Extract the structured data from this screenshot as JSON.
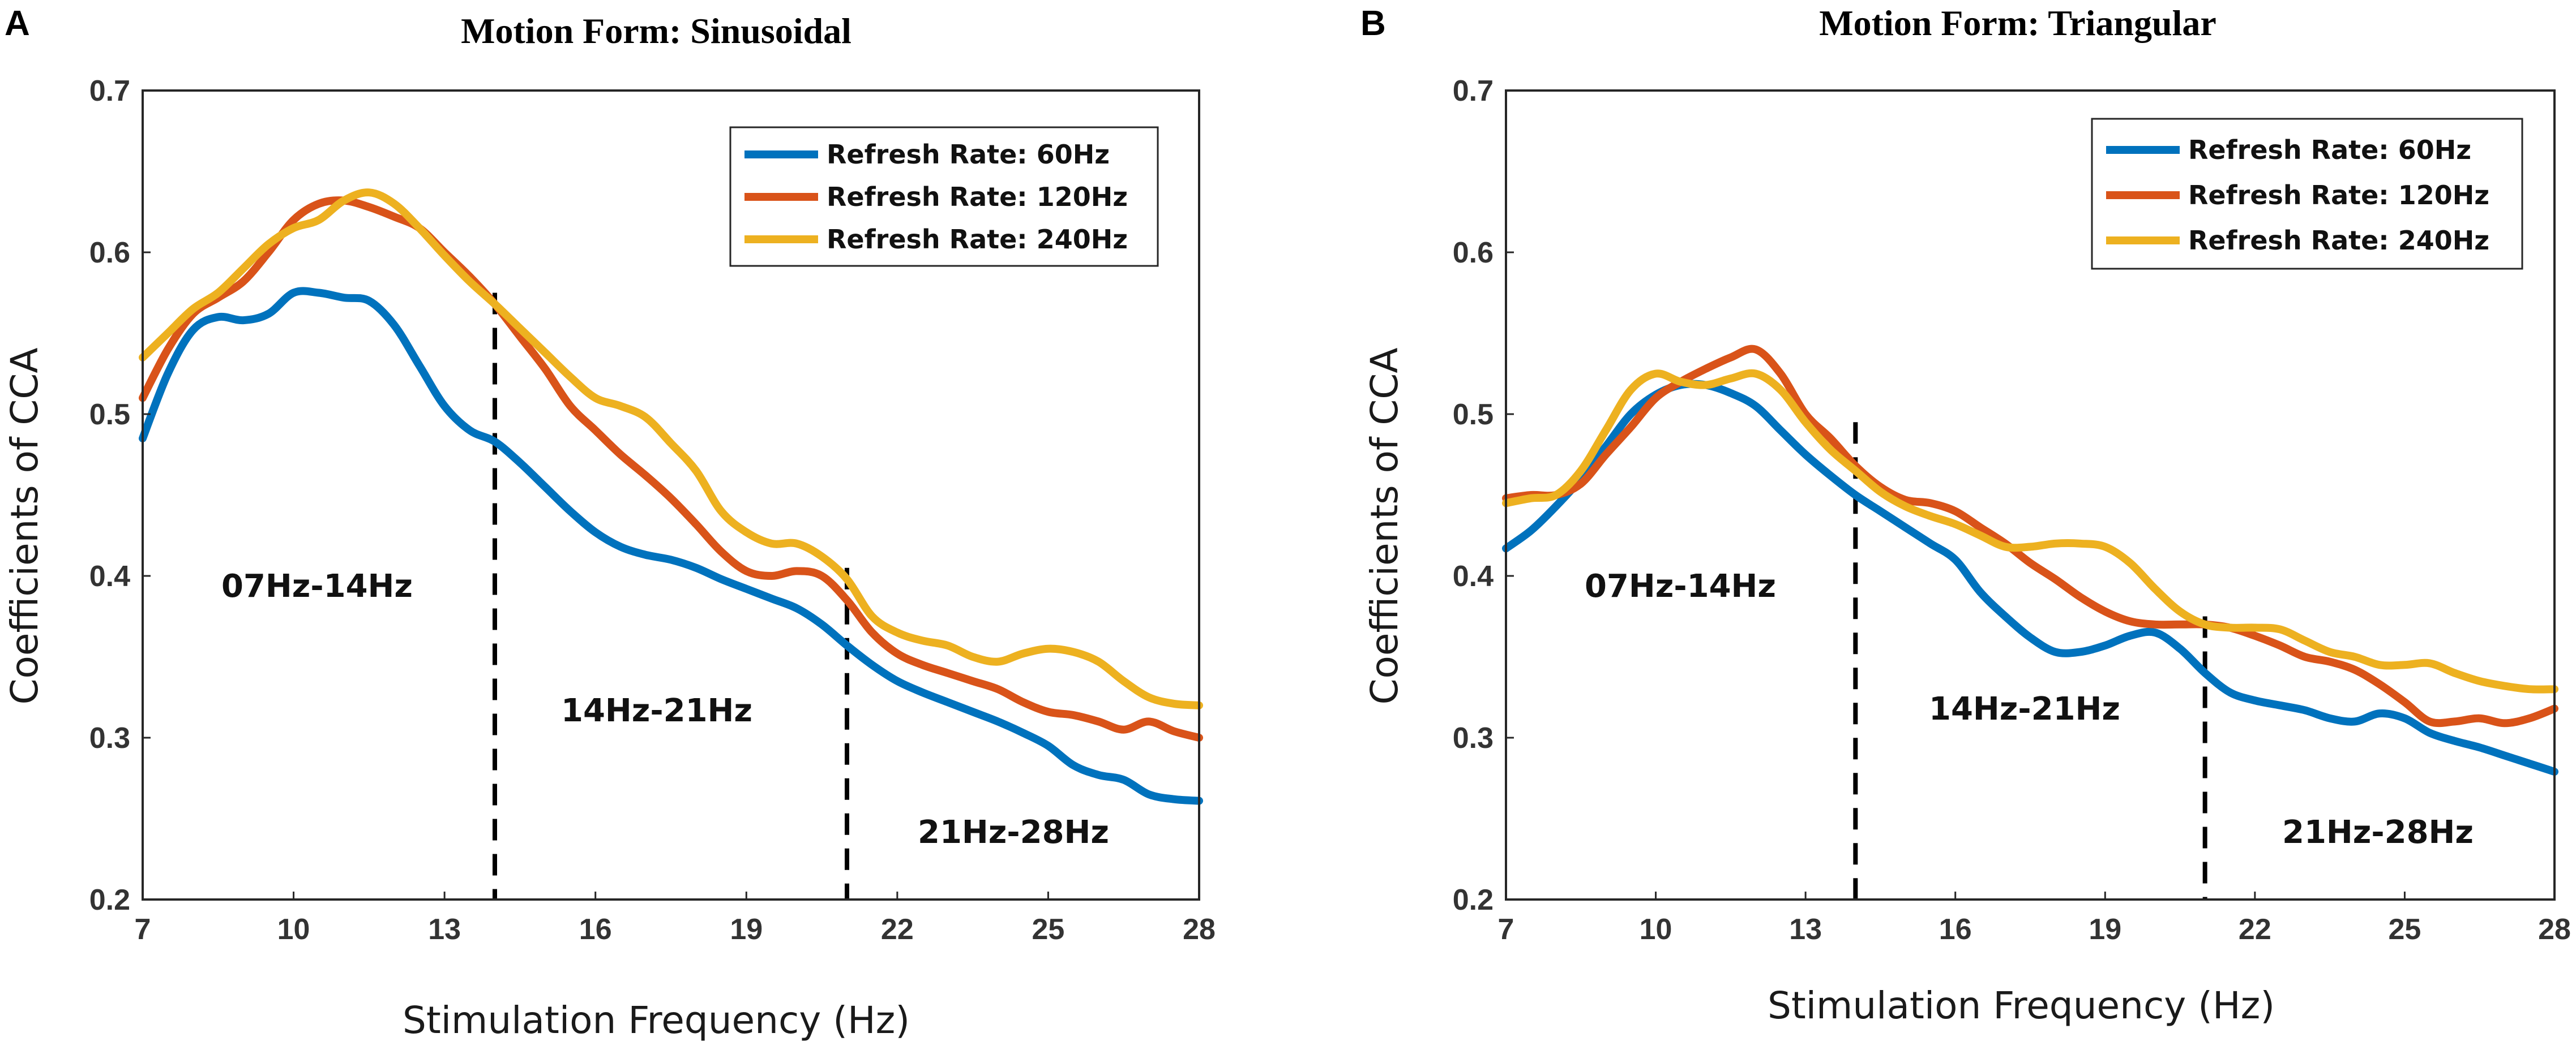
{
  "chart_data": [
    {
      "type": "line",
      "panel_label": "A",
      "title": "Motion Form: Sinusoidal",
      "xlabel": "Stimulation Frequency (Hz)",
      "ylabel": "Coefficients of CCA",
      "xlim": [
        7,
        28
      ],
      "ylim": [
        0.2,
        0.7
      ],
      "xticks": [
        "7",
        "10",
        "13",
        "16",
        "19",
        "22",
        "25",
        "28"
      ],
      "yticks": [
        "0.2",
        "0.3",
        "0.4",
        "0.5",
        "0.6",
        "0.7"
      ],
      "legend_position": "top-right",
      "x": [
        7,
        7.5,
        8,
        8.5,
        9,
        9.5,
        10,
        10.5,
        11,
        11.5,
        12,
        12.5,
        13,
        13.5,
        14,
        14.5,
        15,
        15.5,
        16,
        16.5,
        17,
        17.5,
        18,
        18.5,
        19,
        19.5,
        20,
        20.5,
        21,
        21.5,
        22,
        22.5,
        23,
        23.5,
        24,
        24.5,
        25,
        25.5,
        26,
        26.5,
        27,
        27.5,
        28
      ],
      "series": [
        {
          "name": "Refresh Rate: 60Hz",
          "color": "#0072BD",
          "values": [
            0.485,
            0.525,
            0.552,
            0.56,
            0.558,
            0.562,
            0.575,
            0.575,
            0.572,
            0.57,
            0.555,
            0.53,
            0.505,
            0.49,
            0.483,
            0.47,
            0.455,
            0.44,
            0.427,
            0.418,
            0.413,
            0.41,
            0.405,
            0.398,
            0.392,
            0.386,
            0.38,
            0.37,
            0.357,
            0.345,
            0.335,
            0.328,
            0.322,
            0.316,
            0.31,
            0.303,
            0.295,
            0.283,
            0.277,
            0.274,
            0.265,
            0.262,
            0.261
          ]
        },
        {
          "name": "Refresh Rate: 120Hz",
          "color": "#D95319",
          "values": [
            0.51,
            0.54,
            0.562,
            0.572,
            0.582,
            0.6,
            0.62,
            0.63,
            0.632,
            0.628,
            0.622,
            0.615,
            0.6,
            0.585,
            0.568,
            0.548,
            0.528,
            0.505,
            0.49,
            0.475,
            0.462,
            0.448,
            0.432,
            0.415,
            0.403,
            0.4,
            0.403,
            0.4,
            0.385,
            0.365,
            0.352,
            0.345,
            0.34,
            0.335,
            0.33,
            0.322,
            0.316,
            0.314,
            0.31,
            0.305,
            0.31,
            0.304,
            0.3
          ]
        },
        {
          "name": "Refresh Rate: 240Hz",
          "color": "#EDB120",
          "values": [
            0.535,
            0.55,
            0.565,
            0.575,
            0.59,
            0.605,
            0.615,
            0.62,
            0.632,
            0.637,
            0.63,
            0.615,
            0.598,
            0.582,
            0.568,
            0.553,
            0.538,
            0.523,
            0.51,
            0.505,
            0.498,
            0.482,
            0.465,
            0.44,
            0.427,
            0.42,
            0.42,
            0.412,
            0.398,
            0.375,
            0.365,
            0.36,
            0.357,
            0.35,
            0.347,
            0.352,
            0.355,
            0.353,
            0.347,
            0.335,
            0.325,
            0.321,
            0.32
          ]
        }
      ],
      "dividers": [
        14,
        21
      ],
      "band_labels": [
        "07Hz-14Hz",
        "14Hz-21Hz",
        "21Hz-28Hz"
      ]
    },
    {
      "type": "line",
      "panel_label": "B",
      "title": "Motion Form: Triangular",
      "xlabel": "Stimulation Frequency (Hz)",
      "ylabel": "Coefficients of CCA",
      "xlim": [
        7,
        28
      ],
      "ylim": [
        0.2,
        0.7
      ],
      "xticks": [
        "7",
        "10",
        "13",
        "16",
        "19",
        "22",
        "25",
        "28"
      ],
      "yticks": [
        "0.2",
        "0.3",
        "0.4",
        "0.5",
        "0.6",
        "0.7"
      ],
      "legend_position": "top-right",
      "x": [
        7,
        7.5,
        8,
        8.5,
        9,
        9.5,
        10,
        10.5,
        11,
        11.5,
        12,
        12.5,
        13,
        13.5,
        14,
        14.5,
        15,
        15.5,
        16,
        16.5,
        17,
        17.5,
        18,
        18.5,
        19,
        19.5,
        20,
        20.5,
        21,
        21.5,
        22,
        22.5,
        23,
        23.5,
        24,
        24.5,
        25,
        25.5,
        26,
        26.5,
        27,
        27.5,
        28
      ],
      "series": [
        {
          "name": "Refresh Rate: 60Hz",
          "color": "#0072BD",
          "values": [
            0.417,
            0.428,
            0.443,
            0.46,
            0.48,
            0.5,
            0.512,
            0.518,
            0.518,
            0.513,
            0.505,
            0.49,
            0.475,
            0.462,
            0.45,
            0.44,
            0.43,
            0.42,
            0.41,
            0.39,
            0.375,
            0.362,
            0.353,
            0.353,
            0.357,
            0.363,
            0.365,
            0.355,
            0.34,
            0.328,
            0.323,
            0.32,
            0.317,
            0.312,
            0.31,
            0.315,
            0.312,
            0.303,
            0.298,
            0.294,
            0.289,
            0.284,
            0.279
          ]
        },
        {
          "name": "Refresh Rate: 120Hz",
          "color": "#D95319",
          "values": [
            0.448,
            0.45,
            0.45,
            0.457,
            0.475,
            0.492,
            0.51,
            0.52,
            0.528,
            0.535,
            0.54,
            0.525,
            0.5,
            0.485,
            0.468,
            0.455,
            0.447,
            0.445,
            0.44,
            0.43,
            0.42,
            0.408,
            0.398,
            0.387,
            0.378,
            0.372,
            0.37,
            0.37,
            0.37,
            0.368,
            0.363,
            0.357,
            0.35,
            0.347,
            0.342,
            0.333,
            0.322,
            0.31,
            0.31,
            0.312,
            0.309,
            0.312,
            0.318
          ]
        },
        {
          "name": "Refresh Rate: 240Hz",
          "color": "#EDB120",
          "values": [
            0.445,
            0.448,
            0.45,
            0.465,
            0.49,
            0.515,
            0.525,
            0.52,
            0.518,
            0.522,
            0.525,
            0.515,
            0.495,
            0.478,
            0.465,
            0.452,
            0.443,
            0.437,
            0.432,
            0.425,
            0.418,
            0.418,
            0.42,
            0.42,
            0.418,
            0.408,
            0.392,
            0.378,
            0.37,
            0.368,
            0.368,
            0.367,
            0.36,
            0.353,
            0.35,
            0.345,
            0.345,
            0.346,
            0.34,
            0.335,
            0.332,
            0.33,
            0.33
          ]
        }
      ],
      "dividers": [
        14,
        21
      ],
      "band_labels": [
        "07Hz-14Hz",
        "14Hz-21Hz",
        "21Hz-28Hz"
      ]
    }
  ]
}
